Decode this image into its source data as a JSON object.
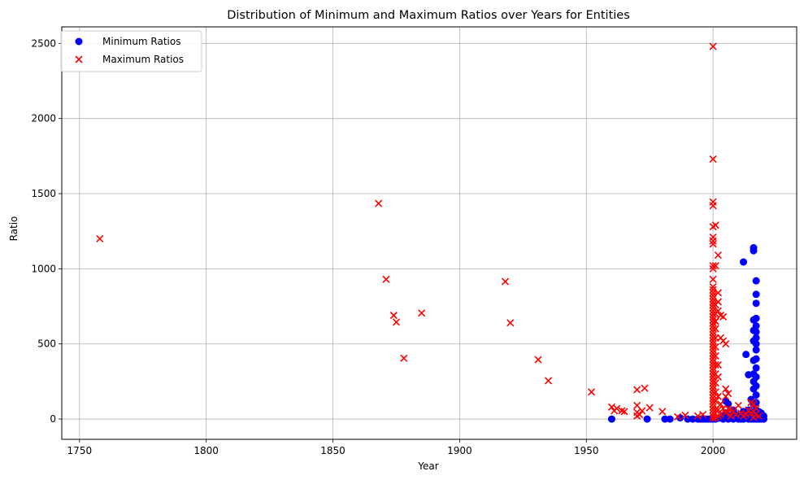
{
  "chart_data": {
    "type": "scatter",
    "title": "Distribution of Minimum and Maximum Ratios over Years for Entities",
    "xlabel": "Year",
    "ylabel": "Ratio",
    "xlim": [
      1743,
      2033
    ],
    "ylim": [
      -135,
      2610
    ],
    "xticks": [
      1750,
      1800,
      1850,
      1900,
      1950,
      2000
    ],
    "yticks": [
      0,
      500,
      1000,
      1500,
      2000,
      2500
    ],
    "grid": true,
    "legend_position": "top-left",
    "series": [
      {
        "name": "Minimum Ratios",
        "marker": "circle",
        "color": "#0000ff",
        "points": [
          [
            1960,
            0
          ],
          [
            1974,
            0
          ],
          [
            1981,
            0
          ],
          [
            1983,
            0
          ],
          [
            1987,
            8
          ],
          [
            1990,
            0
          ],
          [
            1992,
            0
          ],
          [
            1994,
            0
          ],
          [
            1995,
            0
          ],
          [
            1996,
            0
          ],
          [
            1997,
            0
          ],
          [
            1998,
            0
          ],
          [
            1999,
            0
          ],
          [
            2000,
            0
          ],
          [
            2001,
            0
          ],
          [
            2002,
            5
          ],
          [
            2003,
            10
          ],
          [
            2004,
            0
          ],
          [
            2004,
            25
          ],
          [
            2005,
            120
          ],
          [
            2005,
            40
          ],
          [
            2006,
            100
          ],
          [
            2006,
            0
          ],
          [
            2007,
            20
          ],
          [
            2008,
            60
          ],
          [
            2008,
            0
          ],
          [
            2009,
            30
          ],
          [
            2010,
            10
          ],
          [
            2010,
            0
          ],
          [
            2011,
            0
          ],
          [
            2011,
            20
          ],
          [
            2012,
            1045
          ],
          [
            2012,
            50
          ],
          [
            2012,
            0
          ],
          [
            2013,
            430
          ],
          [
            2013,
            10
          ],
          [
            2013,
            40
          ],
          [
            2014,
            295
          ],
          [
            2014,
            0
          ],
          [
            2014,
            60
          ],
          [
            2015,
            130
          ],
          [
            2015,
            0
          ],
          [
            2015,
            10
          ],
          [
            2015,
            50
          ],
          [
            2016,
            1140
          ],
          [
            2016,
            1120
          ],
          [
            2016,
            660
          ],
          [
            2016,
            590
          ],
          [
            2016,
            520
          ],
          [
            2016,
            390
          ],
          [
            2016,
            300
          ],
          [
            2016,
            250
          ],
          [
            2016,
            200
          ],
          [
            2016,
            100
          ],
          [
            2016,
            50
          ],
          [
            2016,
            0
          ],
          [
            2017,
            920
          ],
          [
            2017,
            830
          ],
          [
            2017,
            770
          ],
          [
            2017,
            670
          ],
          [
            2017,
            620
          ],
          [
            2017,
            580
          ],
          [
            2017,
            540
          ],
          [
            2017,
            500
          ],
          [
            2017,
            460
          ],
          [
            2017,
            400
          ],
          [
            2017,
            340
          ],
          [
            2017,
            280
          ],
          [
            2017,
            220
          ],
          [
            2017,
            160
          ],
          [
            2017,
            110
          ],
          [
            2017,
            60
          ],
          [
            2017,
            20
          ],
          [
            2017,
            0
          ],
          [
            2018,
            50
          ],
          [
            2018,
            20
          ],
          [
            2018,
            0
          ],
          [
            2019,
            40
          ],
          [
            2019,
            10
          ],
          [
            2019,
            0
          ],
          [
            2020,
            20
          ],
          [
            2020,
            0
          ]
        ]
      },
      {
        "name": "Maximum Ratios",
        "marker": "x",
        "color": "#ff0000",
        "points": [
          [
            1758,
            1200
          ],
          [
            1868,
            1435
          ],
          [
            1871,
            930
          ],
          [
            1874,
            690
          ],
          [
            1875,
            645
          ],
          [
            1878,
            405
          ],
          [
            1885,
            705
          ],
          [
            1918,
            915
          ],
          [
            1920,
            640
          ],
          [
            1931,
            395
          ],
          [
            1935,
            255
          ],
          [
            1952,
            180
          ],
          [
            1960,
            80
          ],
          [
            1961,
            55
          ],
          [
            1962,
            70
          ],
          [
            1964,
            55
          ],
          [
            1965,
            50
          ],
          [
            1970,
            195
          ],
          [
            1970,
            90
          ],
          [
            1970,
            45
          ],
          [
            1970,
            20
          ],
          [
            1971,
            30
          ],
          [
            1972,
            55
          ],
          [
            1973,
            205
          ],
          [
            1975,
            75
          ],
          [
            1980,
            50
          ],
          [
            1986,
            15
          ],
          [
            1989,
            25
          ],
          [
            1994,
            20
          ],
          [
            1996,
            30
          ],
          [
            2000,
            2480
          ],
          [
            2000,
            1730
          ],
          [
            2000,
            1445
          ],
          [
            2000,
            1420
          ],
          [
            2000,
            1280
          ],
          [
            2000,
            1210
          ],
          [
            2000,
            1185
          ],
          [
            2000,
            1165
          ],
          [
            2000,
            1020
          ],
          [
            2000,
            1000
          ],
          [
            2000,
            930
          ],
          [
            2000,
            880
          ],
          [
            2000,
            860
          ],
          [
            2000,
            840
          ],
          [
            2000,
            820
          ],
          [
            2000,
            800
          ],
          [
            2000,
            780
          ],
          [
            2000,
            760
          ],
          [
            2000,
            740
          ],
          [
            2000,
            720
          ],
          [
            2000,
            700
          ],
          [
            2000,
            680
          ],
          [
            2000,
            660
          ],
          [
            2000,
            640
          ],
          [
            2000,
            620
          ],
          [
            2000,
            600
          ],
          [
            2000,
            580
          ],
          [
            2000,
            560
          ],
          [
            2000,
            540
          ],
          [
            2000,
            520
          ],
          [
            2000,
            500
          ],
          [
            2000,
            480
          ],
          [
            2000,
            460
          ],
          [
            2000,
            440
          ],
          [
            2000,
            420
          ],
          [
            2000,
            400
          ],
          [
            2000,
            380
          ],
          [
            2000,
            360
          ],
          [
            2000,
            340
          ],
          [
            2000,
            320
          ],
          [
            2000,
            300
          ],
          [
            2000,
            280
          ],
          [
            2000,
            260
          ],
          [
            2000,
            240
          ],
          [
            2000,
            220
          ],
          [
            2000,
            200
          ],
          [
            2000,
            180
          ],
          [
            2000,
            160
          ],
          [
            2000,
            140
          ],
          [
            2000,
            120
          ],
          [
            2000,
            100
          ],
          [
            2000,
            80
          ],
          [
            2000,
            60
          ],
          [
            2000,
            40
          ],
          [
            2000,
            20
          ],
          [
            2000,
            5
          ],
          [
            2001,
            1290
          ],
          [
            2001,
            1020
          ],
          [
            2001,
            760
          ],
          [
            2001,
            700
          ],
          [
            2001,
            650
          ],
          [
            2001,
            600
          ],
          [
            2001,
            540
          ],
          [
            2001,
            480
          ],
          [
            2001,
            420
          ],
          [
            2001,
            360
          ],
          [
            2001,
            300
          ],
          [
            2001,
            240
          ],
          [
            2001,
            180
          ],
          [
            2001,
            120
          ],
          [
            2001,
            60
          ],
          [
            2001,
            10
          ],
          [
            2002,
            1090
          ],
          [
            2002,
            840
          ],
          [
            2002,
            780
          ],
          [
            2002,
            720
          ],
          [
            2002,
            360
          ],
          [
            2002,
            280
          ],
          [
            2002,
            150
          ],
          [
            2002,
            60
          ],
          [
            2002,
            20
          ],
          [
            2003,
            690
          ],
          [
            2003,
            540
          ],
          [
            2003,
            100
          ],
          [
            2003,
            30
          ],
          [
            2004,
            680
          ],
          [
            2004,
            520
          ],
          [
            2004,
            70
          ],
          [
            2005,
            500
          ],
          [
            2005,
            200
          ],
          [
            2005,
            150
          ],
          [
            2005,
            40
          ],
          [
            2006,
            170
          ],
          [
            2006,
            70
          ],
          [
            2007,
            60
          ],
          [
            2007,
            20
          ],
          [
            2008,
            50
          ],
          [
            2009,
            30
          ],
          [
            2010,
            90
          ],
          [
            2011,
            40
          ],
          [
            2012,
            20
          ],
          [
            2013,
            30
          ],
          [
            2014,
            60
          ],
          [
            2015,
            110
          ],
          [
            2015,
            40
          ],
          [
            2016,
            100
          ],
          [
            2016,
            50
          ],
          [
            2016,
            10
          ],
          [
            2017,
            70
          ],
          [
            2017,
            30
          ],
          [
            2018,
            20
          ]
        ]
      }
    ]
  }
}
